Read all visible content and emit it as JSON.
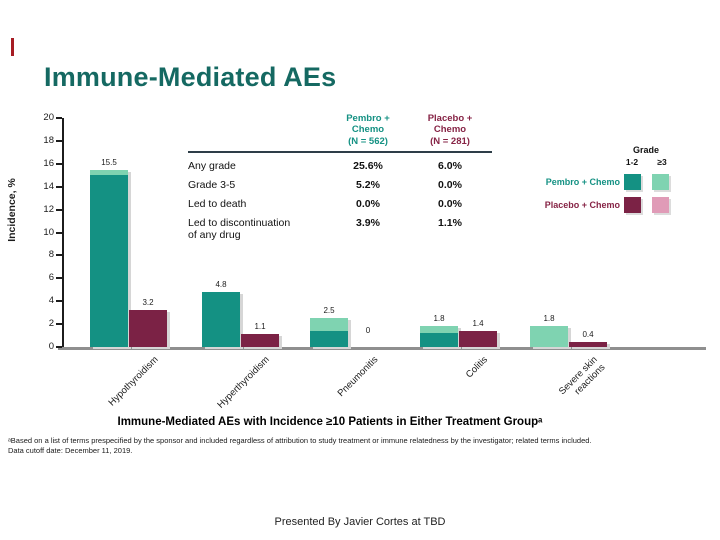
{
  "slide": {
    "title": "Immune-Mediated AEs",
    "caption": "Immune-Mediated AEs with Incidence ≥10 Patients in Either Treatment Groupᵃ",
    "footnotes": [
      "ᵃBased on a list of terms prespecified by the sponsor and included regardless of attribution to study treatment or immune relatedness by the investigator; related terms included.",
      "Data cutoff date: December 11, 2019."
    ],
    "presented_by": "Presented By Javier Cortes at TBD",
    "accent_mark_color": "#a61c23",
    "title_color": "#156962"
  },
  "table": {
    "header": [
      {
        "text": "Pembro +\nChemo\n(N = 562)",
        "color": "#149183"
      },
      {
        "text": "Placebo +\nChemo\n(N = 281)",
        "color": "#862345"
      }
    ],
    "rows": [
      {
        "label": "Any grade",
        "pembro": "25.6%",
        "placebo": "6.0%"
      },
      {
        "label": "Grade 3-5",
        "pembro": "5.2%",
        "placebo": "0.0%"
      },
      {
        "label": "Led to death",
        "pembro": "0.0%",
        "placebo": "0.0%"
      },
      {
        "label": "Led to discontinuation\nof any drug",
        "pembro": "3.9%",
        "placebo": "1.1%"
      }
    ]
  },
  "legend": {
    "grade_header": "Grade",
    "col_labels": [
      "1-2",
      "≥3"
    ],
    "rows": [
      {
        "label": "Pembro + Chemo",
        "label_color": "#149183",
        "swatches": [
          "#149183",
          "#7fd3b1"
        ]
      },
      {
        "label": "Placebo + Chemo",
        "label_color": "#862345",
        "swatches": [
          "#7b2245",
          "#e09bb7"
        ]
      }
    ]
  },
  "chart_data": {
    "type": "bar",
    "title": "Immune-Mediated AEs",
    "xlabel": "",
    "ylabel": "Incidence, %",
    "ylim": [
      0,
      20
    ],
    "ytick_step": 2,
    "grid": false,
    "legend_position": "right",
    "categories": [
      "Hypothyroidism",
      "Hyperthyroidism",
      "Pneumonitis",
      "Colitis",
      "Severe skin\nreactions"
    ],
    "series": [
      {
        "name": "Pembro + Chemo",
        "totals": [
          15.5,
          4.8,
          2.5,
          1.8,
          1.8
        ],
        "grade_1_2": [
          15.0,
          4.8,
          1.4,
          1.2,
          0
        ],
        "grade_3_plus": [
          0.5,
          0,
          1.1,
          0.6,
          1.8
        ],
        "bar_labels": [
          "15.5",
          "4.8",
          "2.5",
          "1.8",
          "1.8"
        ],
        "color_grade_1_2": "#149183",
        "color_grade_3_plus": "#7fd3b1"
      },
      {
        "name": "Placebo + Chemo",
        "totals": [
          3.2,
          1.1,
          0,
          1.4,
          0.4
        ],
        "grade_1_2": [
          3.2,
          1.1,
          0,
          1.4,
          0.4
        ],
        "grade_3_plus": [
          0,
          0,
          0,
          0,
          0
        ],
        "bar_labels": [
          "3.2",
          "1.1",
          "0",
          "1.4",
          "0.4"
        ],
        "color_grade_1_2": "#7b2245",
        "color_grade_3_plus": "#e09bb7"
      }
    ]
  }
}
